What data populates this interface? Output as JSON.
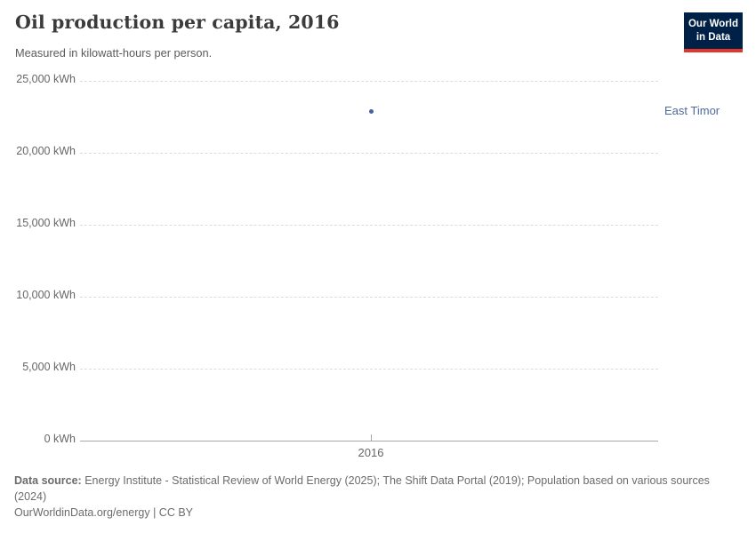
{
  "header": {
    "title": "Oil production per capita, 2016",
    "subtitle": "Measured in kilowatt-hours per person."
  },
  "logo": {
    "line1": "Our World",
    "line2": "in Data"
  },
  "chart_data": {
    "type": "scatter",
    "title": "Oil production per capita, 2016",
    "xlabel": "",
    "ylabel": "kilowatt-hours per person",
    "x": [
      2016
    ],
    "x_tick_label": "2016",
    "series": [
      {
        "name": "East Timor",
        "values": [
          22840
        ]
      }
    ],
    "ylim": [
      0,
      25000
    ],
    "y_ticks": [
      {
        "value": 25000,
        "label": "25,000 kWh"
      },
      {
        "value": 20000,
        "label": "20,000 kWh"
      },
      {
        "value": 15000,
        "label": "15,000 kWh"
      },
      {
        "value": 10000,
        "label": "10,000 kWh"
      },
      {
        "value": 5000,
        "label": "5,000 kWh"
      },
      {
        "value": 0,
        "label": "0 kWh"
      }
    ],
    "grid": "dashed-horizontal",
    "legend_position": "right-of-point"
  },
  "colors": {
    "accent_blue": "#4c6a9c",
    "point_blue": "#44639c",
    "logo_navy": "#002147",
    "logo_red": "#e0362b",
    "title_gray": "#3b3b3b",
    "axis_gray": "#666666",
    "gridline_gray": "#dcdcdc"
  },
  "footer": {
    "source_label": "Data source:",
    "source_text": "Energy Institute - Statistical Review of World Energy (2025); The Shift Data Portal (2019); Population based on various sources (2024)",
    "citation": "OurWorldinData.org/energy | CC BY"
  }
}
